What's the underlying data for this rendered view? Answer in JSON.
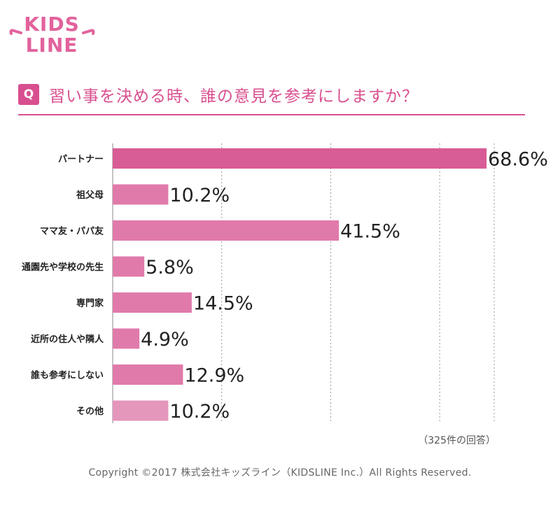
{
  "brand": {
    "logo_text_top": "KIDS",
    "logo_text_bottom": "LINE"
  },
  "question": {
    "badge": "Q",
    "text": "習い事を決める時、誰の意見を参考にしますか？"
  },
  "chart_data": {
    "type": "bar",
    "orientation": "horizontal",
    "categories": [
      "パートナー",
      "祖父母",
      "ママ友・パパ友",
      "通園先や学校の先生",
      "専門家",
      "近所の住人や隣人",
      "誰も参考にしない",
      "その他"
    ],
    "values": [
      68.6,
      10.2,
      41.5,
      5.8,
      14.5,
      4.9,
      12.9,
      10.2
    ],
    "value_labels": [
      "68.6%",
      "10.2%",
      "41.5%",
      "5.8%",
      "14.5%",
      "4.9%",
      "12.9%",
      "10.2%"
    ],
    "xlim": [
      0,
      70
    ],
    "grid": true,
    "colors": {
      "bar_primary": "#d85c95",
      "bar": "#e07aaa",
      "bar_last": "#e496bb",
      "grid": "#999999"
    }
  },
  "note": "（325件の回答）",
  "copyright": "Copyright ©2017 株式会社キッズライン（KIDSLINE Inc.）All Rights Reserved."
}
